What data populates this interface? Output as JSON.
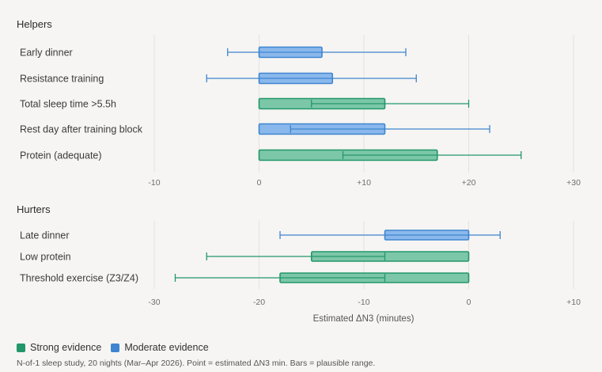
{
  "chart_data": [
    {
      "type": "bar",
      "title": "Helpers",
      "xlabel": "",
      "xlim": [
        -10,
        30
      ],
      "xticks": [
        -10,
        0,
        10,
        20,
        30
      ],
      "xtick_labels": [
        "-10",
        "0",
        "+10",
        "+20",
        "+30"
      ],
      "rows": [
        {
          "label": "Early dinner",
          "value": 6,
          "low": -3,
          "high": 14,
          "evidence": "moderate"
        },
        {
          "label": "Resistance training",
          "value": 7,
          "low": -5,
          "high": 15,
          "evidence": "moderate"
        },
        {
          "label": "Total sleep time >5.5h",
          "value": 12,
          "low": 5,
          "high": 20,
          "evidence": "strong"
        },
        {
          "label": "Rest day after training block",
          "value": 12,
          "low": 3,
          "high": 22,
          "evidence": "moderate"
        },
        {
          "label": "Protein (adequate)",
          "value": 17,
          "low": 8,
          "high": 25,
          "evidence": "strong"
        }
      ]
    },
    {
      "type": "bar",
      "title": "Hurters",
      "xlabel": "Estimated ΔN3 (minutes)",
      "xlim": [
        -30,
        10
      ],
      "xticks": [
        -30,
        -20,
        -10,
        0,
        10
      ],
      "xtick_labels": [
        "-30",
        "-20",
        "-10",
        "0",
        "+10"
      ],
      "rows": [
        {
          "label": "Late dinner",
          "value": -8,
          "low": -18,
          "high": 3,
          "evidence": "moderate"
        },
        {
          "label": "Low protein",
          "value": -15,
          "low": -25,
          "high": -8,
          "evidence": "strong"
        },
        {
          "label": "Threshold exercise (Z3/Z4)",
          "value": -18,
          "low": -28,
          "high": -8,
          "evidence": "strong"
        }
      ]
    }
  ],
  "legend": {
    "strong_label": "Strong evidence",
    "moderate_label": "Moderate evidence"
  },
  "colors": {
    "strong_fill": "#7cc7a8",
    "strong_stroke": "#22976a",
    "moderate_fill": "#8ab8ec",
    "moderate_stroke": "#3f85cf",
    "grid": "#e3e1dd"
  },
  "footnote": "N-of-1 sleep study, 20 nights (Mar–Apr 2026). Point = estimated ΔN3 min. Bars = plausible range."
}
